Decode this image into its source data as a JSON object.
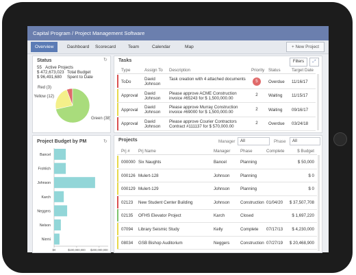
{
  "header": {
    "title": "Capital Program / Project Management Software"
  },
  "nav": {
    "tabs": [
      "Overview",
      "Dashboard",
      "Scorecard",
      "Team",
      "Calendar",
      "Map"
    ],
    "new_project": "+ New Project"
  },
  "status": {
    "title": "Status",
    "lines": [
      {
        "value": "55",
        "label": "Active Projects"
      },
      {
        "value": "$ 472,673,023",
        "label": "Total Budget"
      },
      {
        "value": "$ 96,491,680",
        "label": "Spent to Date"
      }
    ]
  },
  "chart_data": [
    {
      "type": "pie",
      "values": [
        3,
        12,
        38
      ],
      "labels": [
        "Red (3)",
        "Yellow (12)",
        "Green (38)"
      ],
      "colors": [
        "#e06a6a",
        "#f4f08a",
        "#a9dc7c"
      ]
    },
    {
      "type": "bar",
      "title": "Project Budget by PM",
      "orientation": "horizontal",
      "categories": [
        "Bancel",
        "Frohlich",
        "Johnson",
        "Karch",
        "Neggers",
        "Nelson",
        "Niemi"
      ],
      "values": [
        52000000,
        52000000,
        182000000,
        43000000,
        58000000,
        30000000,
        24000000
      ],
      "color": "#92d6d8",
      "xlim": [
        0,
        240000000
      ],
      "xticks": [
        {
          "value": 0,
          "label": "$0"
        },
        {
          "value": 100000000,
          "label": "$100,000,000"
        },
        {
          "value": 200000000,
          "label": "$200,000,000"
        }
      ]
    }
  ],
  "tasks": {
    "title": "Tasks",
    "filters": "Filters",
    "columns": [
      "Type",
      "Assign To",
      "Description",
      "Priority",
      "Status",
      "Target Date"
    ],
    "rows": [
      {
        "type": "ToDo",
        "assign": "David Johnson",
        "description": "Task creation with 4 attached documents",
        "priority": 5,
        "priority_color": "#e06a6a",
        "status": "Overdue",
        "target": "11/16/17",
        "flag": "#d94f4f"
      },
      {
        "type": "Approval",
        "assign": "David Johnson",
        "description": "Please approve ACME Construction invoice #65243 for $ 1,500,000.00",
        "priority": 2,
        "status": "Waiting",
        "target": "11/15/17",
        "flag": "#e6d84a"
      },
      {
        "type": "Approval",
        "assign": "David Johnson",
        "description": "Please approve Murray Construction invoice #69000 for $ 1,500,000.00",
        "priority": 2,
        "status": "Waiting",
        "target": "09/16/17",
        "flag": "#e6d84a"
      },
      {
        "type": "Approval",
        "assign": "David Johnson",
        "description": "Please approve Courier Contractors Contract #111137 for $ 570,000.00",
        "priority": 2,
        "status": "Overdue",
        "target": "03/24/18",
        "flag": "#d94f4f"
      }
    ]
  },
  "projects": {
    "title": "Projects",
    "manager_label": "Manager",
    "manager_value": "All",
    "phase_label": "Phase",
    "phase_value": "All",
    "columns": [
      "Prj #",
      "Prj Name",
      "Manager",
      "Phase",
      "Complete",
      "$ Budget"
    ],
    "rows": [
      {
        "id": "000000",
        "name": "Six Naughts",
        "manager": "Bancel",
        "phase": "Planning",
        "complete": null,
        "budget": "$ 50,000",
        "flag": "#e6d84a"
      },
      {
        "id": "000126",
        "name": "Mulert-128",
        "manager": "Johnson",
        "phase": "Planning",
        "complete": null,
        "budget": "$ 0",
        "flag": "#e6d84a"
      },
      {
        "id": "000129",
        "name": "Mulert-129",
        "manager": "Johnson",
        "phase": "Planning",
        "complete": null,
        "budget": "$ 0",
        "flag": "#e6d84a"
      },
      {
        "id": "02123",
        "name": "New Student Center Building",
        "manager": "Johnson",
        "phase": "Construction",
        "complete": "01/04/20",
        "budget": "$ 37,507,708",
        "flag": "#d94f4f"
      },
      {
        "id": "02135",
        "name": "OFHS Elevator Project",
        "manager": "Karch",
        "phase": "Closed",
        "complete": null,
        "budget": "$ 1,697,220",
        "flag": "#7cc36a"
      },
      {
        "id": "07094",
        "name": "Library Seismic Study",
        "manager": "Kelly",
        "phase": "Complete",
        "complete": "07/17/13",
        "budget": "$ 4,230,000",
        "flag": "#e6d84a"
      },
      {
        "id": "08034",
        "name": "GSB Bishop Auditorium",
        "manager": "Neggers",
        "phase": "Construction",
        "complete": "07/27/19",
        "budget": "$ 20,468,900",
        "flag": "#e6d84a"
      }
    ]
  }
}
